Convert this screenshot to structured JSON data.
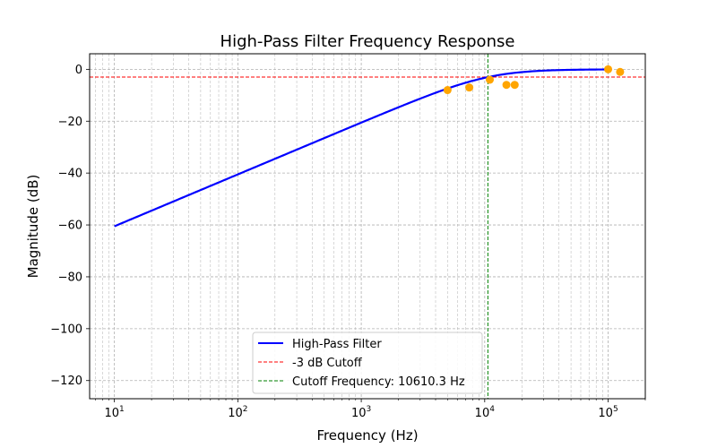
{
  "chart_data": {
    "type": "line",
    "title": "High-Pass Filter Frequency Response",
    "xlabel": "Frequency (Hz)",
    "ylabel": "Magnitude (dB)",
    "xscale": "log",
    "xlim": [
      6.3,
      200000
    ],
    "ylim": [
      -127,
      6
    ],
    "grid": true,
    "legend_position": "lower-center",
    "x_ticks": [
      {
        "value": 10,
        "base": "10",
        "exp": "1"
      },
      {
        "value": 100,
        "base": "10",
        "exp": "2"
      },
      {
        "value": 1000,
        "base": "10",
        "exp": "3"
      },
      {
        "value": 10000,
        "base": "10",
        "exp": "4"
      },
      {
        "value": 100000,
        "base": "10",
        "exp": "5"
      }
    ],
    "y_ticks": [
      {
        "value": 0,
        "label": "0"
      },
      {
        "value": -20,
        "label": "−20"
      },
      {
        "value": -40,
        "label": "−40"
      },
      {
        "value": -60,
        "label": "−60"
      },
      {
        "value": -80,
        "label": "−80"
      },
      {
        "value": -100,
        "label": "−100"
      },
      {
        "value": -120,
        "label": "−120"
      }
    ],
    "series": [
      {
        "name": "High-Pass Filter",
        "kind": "line",
        "color": "#0000ff",
        "model": "first_order_highpass",
        "cutoff_hz": 10610.3,
        "x_range": [
          10,
          100000
        ]
      },
      {
        "kind": "scatter",
        "color": "#ffa500",
        "points": [
          {
            "x": 5000,
            "y": -8
          },
          {
            "x": 7500,
            "y": -7
          },
          {
            "x": 11000,
            "y": -4
          },
          {
            "x": 15000,
            "y": -6
          },
          {
            "x": 17500,
            "y": -6
          },
          {
            "x": 100000,
            "y": 0
          },
          {
            "x": 125000,
            "y": -1
          }
        ]
      }
    ],
    "reference_lines": [
      {
        "name": "-3 dB Cutoff",
        "orientation": "horizontal",
        "value": -3,
        "color": "#ff0000"
      },
      {
        "name": "Cutoff Frequency: 10610.3 Hz",
        "orientation": "vertical",
        "value": 10610.3,
        "color": "#008000"
      }
    ]
  }
}
